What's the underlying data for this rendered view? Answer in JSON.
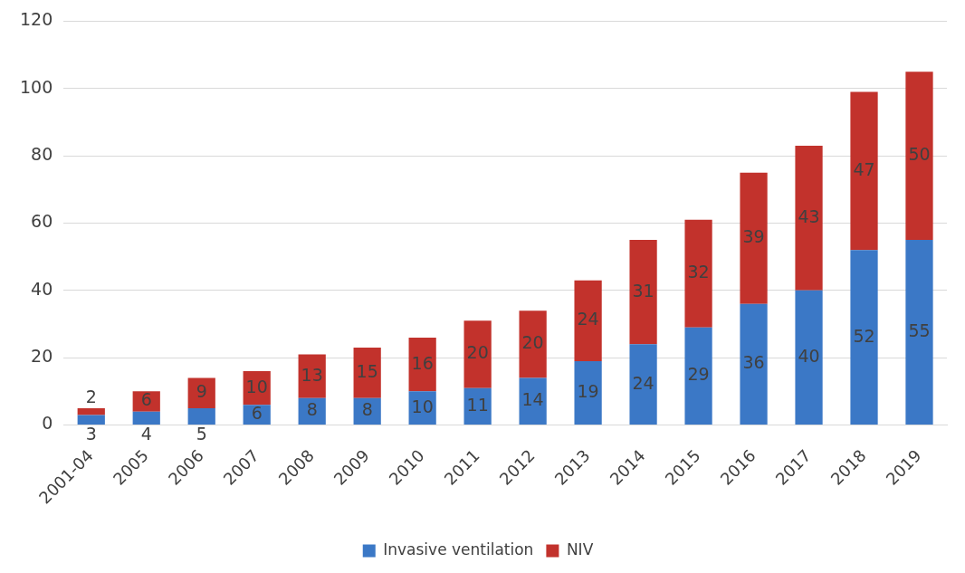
{
  "chart_data": {
    "type": "bar",
    "stacked": true,
    "categories": [
      "2001-04",
      "2005",
      "2006",
      "2007",
      "2008",
      "2009",
      "2010",
      "2011",
      "2012",
      "2013",
      "2014",
      "2015",
      "2016",
      "2017",
      "2018",
      "2019"
    ],
    "series": [
      {
        "name": "Invasive ventilation",
        "color": "#3b78c6",
        "values": [
          3,
          4,
          5,
          6,
          8,
          8,
          10,
          11,
          14,
          19,
          24,
          29,
          36,
          40,
          52,
          55
        ]
      },
      {
        "name": "NIV",
        "color": "#c2322c",
        "values": [
          2,
          6,
          9,
          10,
          13,
          15,
          16,
          20,
          20,
          24,
          31,
          32,
          39,
          43,
          47,
          50
        ]
      }
    ],
    "ylim": [
      0,
      120
    ],
    "yticks": [
      0,
      20,
      40,
      60,
      80,
      100,
      120
    ],
    "grid": "y",
    "legend": "bottom",
    "data_labels": true
  }
}
